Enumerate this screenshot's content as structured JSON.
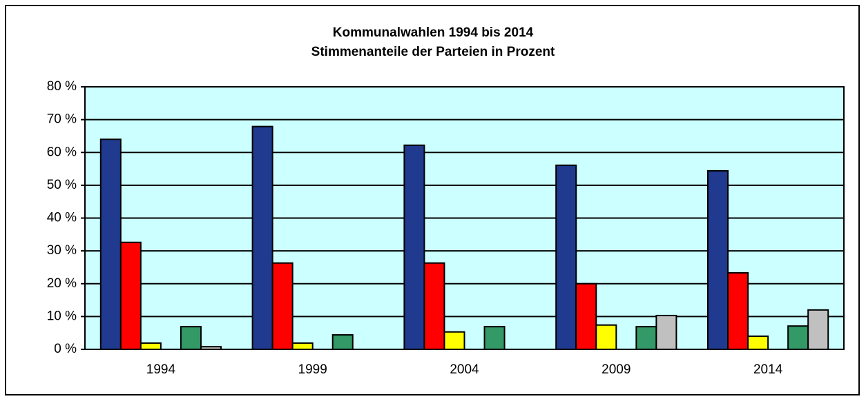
{
  "chart_data": {
    "type": "bar",
    "title": "Kommunalwahlen 1994 bis 2014",
    "subtitle": "Stimmenanteile der Parteien in Prozent",
    "categories": [
      "1994",
      "1999",
      "2004",
      "2009",
      "2014"
    ],
    "series": [
      {
        "color": "#1f3a8f",
        "values": [
          64.0,
          67.9,
          62.2,
          56.1,
          54.4
        ]
      },
      {
        "color": "#ff0000",
        "values": [
          32.6,
          26.3,
          26.3,
          20.0,
          23.3
        ]
      },
      {
        "color": "#ffff00",
        "values": [
          1.9,
          1.9,
          5.3,
          7.4,
          4.0
        ]
      },
      {
        "color": "#339966",
        "values": [
          6.9,
          4.4,
          6.9,
          6.9,
          7.1
        ]
      },
      {
        "color": "#c0c0c0",
        "values": [
          0.8,
          null,
          null,
          10.3,
          12.0
        ]
      }
    ],
    "ylim": [
      0,
      80
    ],
    "yticks": [
      {
        "value": 0,
        "label": "0 %"
      },
      {
        "value": 10,
        "label": "10 %"
      },
      {
        "value": 20,
        "label": "20 %"
      },
      {
        "value": 30,
        "label": "30 %"
      },
      {
        "value": 40,
        "label": "40 %"
      },
      {
        "value": 50,
        "label": "50 %"
      },
      {
        "value": 60,
        "label": "60 %"
      },
      {
        "value": 70,
        "label": "70 %"
      },
      {
        "value": 80,
        "label": "80 %"
      }
    ],
    "grid": true,
    "plot_background": "#ccffff"
  }
}
